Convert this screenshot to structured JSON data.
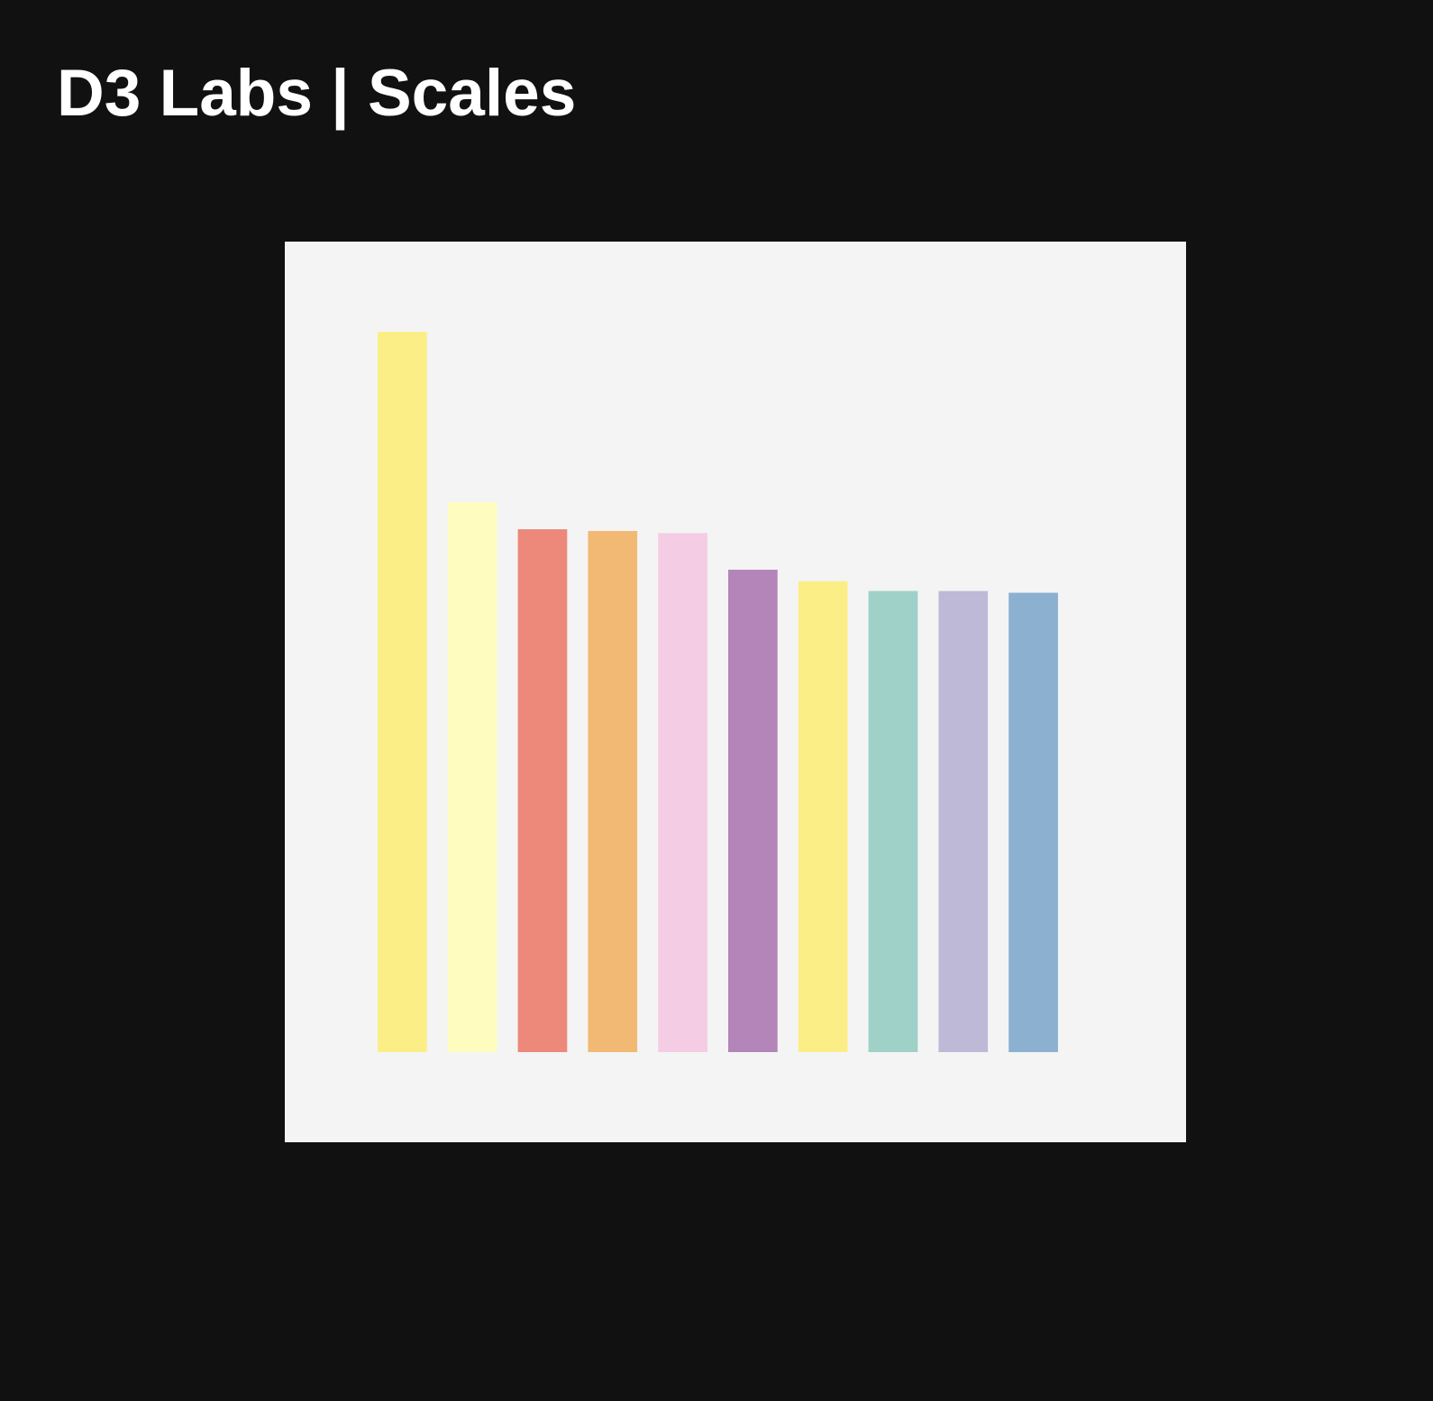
{
  "title": "D3 Labs | Scales",
  "chart_data": {
    "type": "bar",
    "values": [
      828,
      632,
      601,
      599,
      596.6,
      554.5,
      541.3,
      530,
      530,
      528
    ],
    "colors": [
      "#fcee87",
      "#fffcbf",
      "#ec897a",
      "#f2b975",
      "#f4cce4",
      "#b385b9",
      "#fcee87",
      "#9fd1c8",
      "#bdb9d7",
      "#8bb0d0"
    ],
    "ylim": [
      0,
      828
    ]
  }
}
